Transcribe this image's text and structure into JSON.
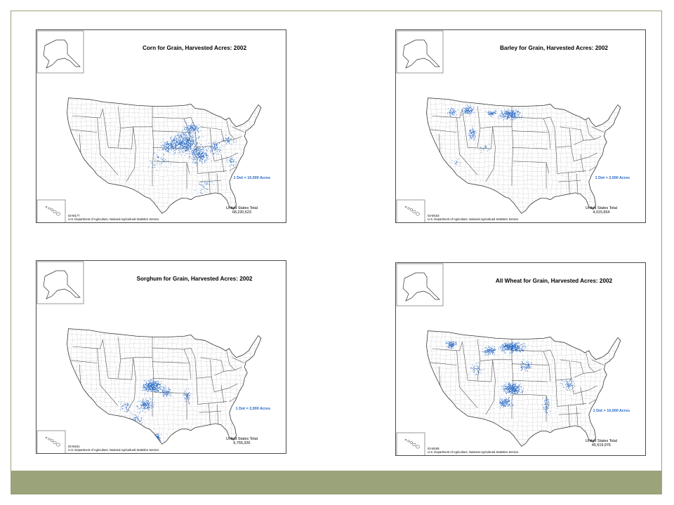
{
  "maps": [
    {
      "title": "Corn for Grain, Harvested Acres:  2002",
      "legend": "1 Dot = 10,000 Acres",
      "total_label": "United States Total",
      "total_value": "68,230,523",
      "map_id": "02-M177",
      "credit": "U.S. Department of Agriculture, National Agricultural Statistics Service",
      "dot_color": "#2467c4",
      "concentration": "Corn Belt (Iowa, Illinois, Indiana, Nebraska, Minnesota)"
    },
    {
      "title": "Barley for Grain, Harvested Acres:  2002",
      "legend": "1 Dot = 2,000 Acres",
      "total_label": "United States Total",
      "total_value": "4,015,654",
      "map_id": "02-M183",
      "credit": "U.S. Department of Agriculture, National Agricultural Statistics Service",
      "dot_color": "#2467c4",
      "concentration": "Northern Plains and Pacific Northwest (North Dakota, Montana, Idaho)"
    },
    {
      "title": "Sorghum for Grain, Harvested Acres:  2002",
      "legend": "1 Dot = 2,000 Acres",
      "total_label": "United States Total",
      "total_value": "6,755,326",
      "map_id": "02-M181",
      "credit": "U.S. Department of Agriculture, National Agricultural Statistics Service",
      "dot_color": "#2467c4",
      "concentration": "Southern Plains (Kansas, Texas, Oklahoma)"
    },
    {
      "title": "All Wheat for Grain, Harvested Acres:  2002",
      "legend": "1 Dot = 10,000 Acres",
      "total_label": "United States Total",
      "total_value": "45,519,976",
      "map_id": "02-M185",
      "credit": "U.S. Department of Agriculture, National Agricultural Statistics Service",
      "dot_color": "#2467c4",
      "concentration": "Great Plains and Pacific Northwest (Kansas, North Dakota, Montana, Oklahoma, Washington)"
    }
  ],
  "colors": {
    "frame": "#9aa07a",
    "footer": "#9aa37a",
    "state_line": "#555555",
    "county_line": "#c8c8c8",
    "dots": "#2467c4"
  }
}
